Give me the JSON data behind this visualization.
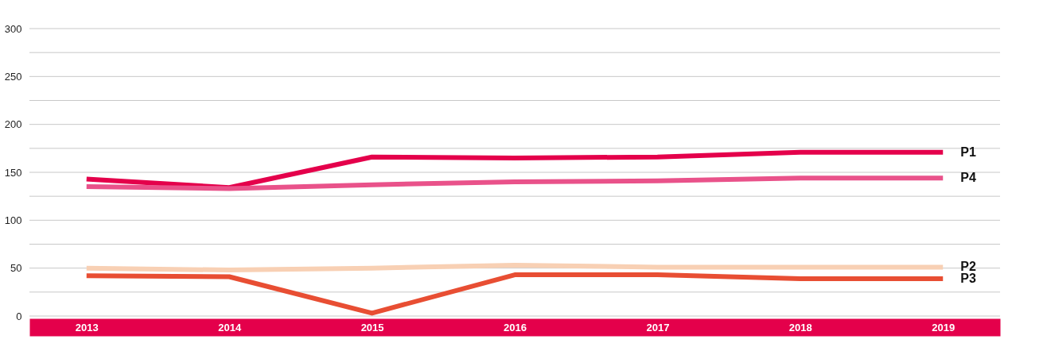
{
  "chart_data": {
    "type": "line",
    "categories": [
      "2013",
      "2014",
      "2015",
      "2016",
      "2017",
      "2018",
      "2019"
    ],
    "series": [
      {
        "name": "P1",
        "color": "#e4004b",
        "values": [
          143,
          134,
          166,
          165,
          166,
          171,
          171
        ]
      },
      {
        "name": "P4",
        "color": "#e9528a",
        "values": [
          135,
          133,
          137,
          140,
          141,
          144,
          144
        ]
      },
      {
        "name": "P2",
        "color": "#f8d0b4",
        "values": [
          50,
          48,
          50,
          53,
          51,
          51,
          51
        ]
      },
      {
        "name": "P3",
        "color": "#e84e33",
        "values": [
          42,
          41,
          3,
          43,
          43,
          39,
          39
        ]
      }
    ],
    "ylim": [
      0,
      300
    ],
    "yticks": [
      0,
      {
        "value": 25,
        "label": null
      },
      50,
      {
        "value": 75,
        "label": null
      },
      100,
      {
        "value": 125,
        "label": null
      },
      150,
      {
        "value": 175,
        "label": null
      },
      200,
      {
        "value": 225,
        "label": null
      },
      250,
      {
        "value": 275,
        "label": null
      },
      300
    ],
    "grid": "y",
    "legend": false,
    "marker": "none",
    "line_style": "solid"
  }
}
